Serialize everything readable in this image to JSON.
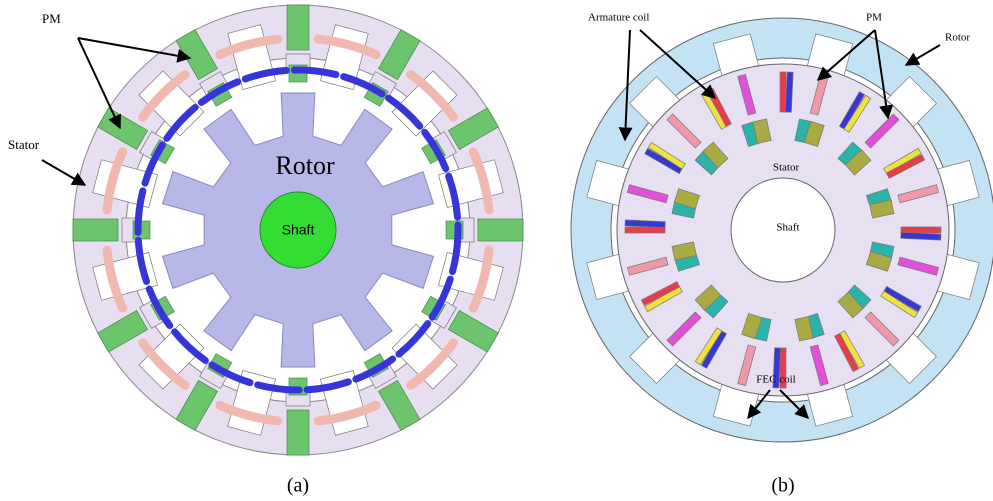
{
  "figure_a": {
    "labels": {
      "pm": "PM",
      "stator": "Stator",
      "rotor": "Rotor",
      "shaft": "Shaft"
    },
    "caption": "(a)"
  },
  "figure_b": {
    "labels": {
      "armature_coil": "Armature coil",
      "pm": "PM",
      "rotor": "Rotor",
      "stator": "Stator",
      "shaft": "Shaft",
      "fec_coil": "FEC coil"
    },
    "caption": "(b)"
  }
}
